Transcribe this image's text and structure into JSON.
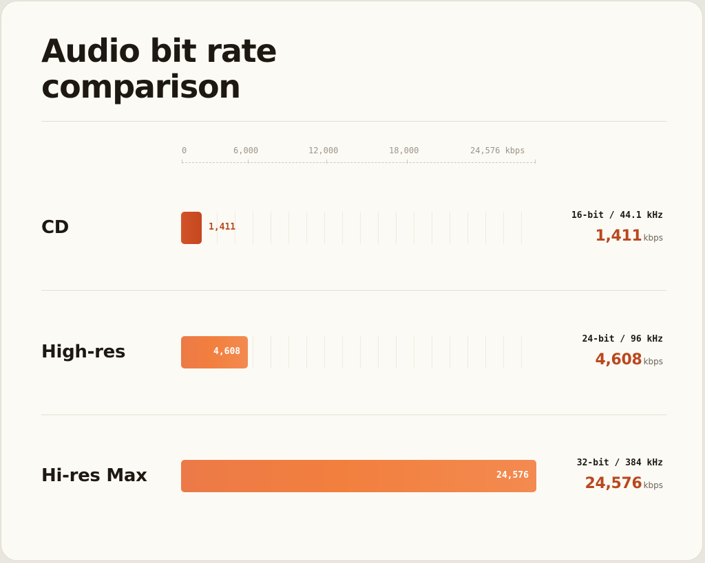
{
  "title": "Audio bit rate comparison",
  "axis": {
    "ticks": [
      "0",
      "6,000",
      "12,000",
      "18,000",
      "24,576 kbps"
    ],
    "tick_values": [
      0,
      6000,
      12000,
      18000,
      24576
    ]
  },
  "rows": [
    {
      "label": "CD",
      "spec": "16-bit / 44.1 kHz",
      "value_text": "1,411",
      "unit": "kbps"
    },
    {
      "label": "High-res",
      "spec": "24-bit / 96 kHz",
      "value_text": "4,608",
      "unit": "kbps"
    },
    {
      "label": "Hi-res Max",
      "spec": "32-bit / 384 kHz",
      "value_text": "24,576",
      "unit": "kbps"
    }
  ],
  "chart_data": {
    "type": "bar",
    "orientation": "horizontal",
    "title": "Audio bit rate comparison",
    "categories": [
      "CD",
      "High-res",
      "Hi-res Max"
    ],
    "values": [
      1411,
      4608,
      24576
    ],
    "unit": "kbps",
    "xlim": [
      0,
      24576
    ],
    "grid": true,
    "colors": {
      "cd": "#c94b22",
      "bar": "#f07e42",
      "accent_text": "#b9481f"
    }
  }
}
